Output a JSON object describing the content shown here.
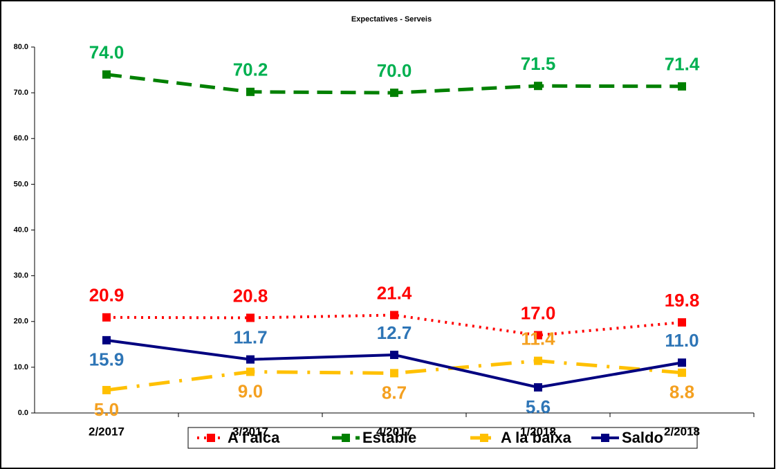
{
  "chart_data": {
    "type": "line",
    "title": "Expectatives - Serveis",
    "categories": [
      "2/2017",
      "3/2017",
      "4/2017",
      "1/2018",
      "2/2018"
    ],
    "ylim": [
      0,
      80
    ],
    "yticks": [
      {
        "value": 0,
        "label": "0.0"
      },
      {
        "value": 10,
        "label": "10.0"
      },
      {
        "value": 20,
        "label": "20.0"
      },
      {
        "value": 30,
        "label": "30.0"
      },
      {
        "value": 40,
        "label": "40.0"
      },
      {
        "value": 50,
        "label": "50.0"
      },
      {
        "value": 60,
        "label": "60.0"
      },
      {
        "value": 70,
        "label": "70.0"
      },
      {
        "value": 80,
        "label": "80.0"
      }
    ],
    "grid": false,
    "legend": "bottom",
    "series": [
      {
        "name": "A l'alca",
        "color": "#ff0000",
        "label_color": "#ff0000",
        "line_style": "dotted",
        "values": [
          20.9,
          20.8,
          21.4,
          17.0,
          19.8
        ],
        "value_labels": [
          "20.9",
          "20.8",
          "21.4",
          "17.0",
          "19.8"
        ]
      },
      {
        "name": "Estable",
        "color": "#008000",
        "label_color": "#00b050",
        "line_style": "dashed",
        "values": [
          74.0,
          70.2,
          70.0,
          71.5,
          71.4
        ],
        "value_labels": [
          "74.0",
          "70.2",
          "70.0",
          "71.5",
          "71.4"
        ]
      },
      {
        "name": "A la baixa",
        "color": "#ffc000",
        "label_color": "#f4a020",
        "line_style": "dashdot",
        "values": [
          5.0,
          9.0,
          8.7,
          11.4,
          8.8
        ],
        "value_labels": [
          "5.0",
          "9.0",
          "8.7",
          "11.4",
          "8.8"
        ]
      },
      {
        "name": "Saldo",
        "color": "#000080",
        "label_color": "#2e75b6",
        "line_style": "solid",
        "values": [
          15.9,
          11.7,
          12.7,
          5.6,
          11.0
        ],
        "value_labels": [
          "15.9",
          "11.7",
          "12.7",
          "5.6",
          "11.0"
        ]
      }
    ]
  }
}
